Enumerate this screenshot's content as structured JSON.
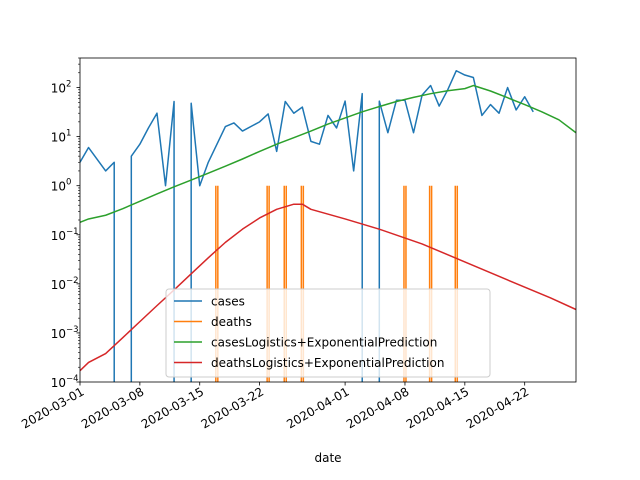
{
  "chart_data": {
    "type": "line",
    "title": "",
    "xlabel": "date",
    "ylabel": "",
    "yscale": "log",
    "ylim": [
      0.0001,
      400
    ],
    "xlim": [
      "2020-03-01",
      "2020-04-28"
    ],
    "grid": false,
    "legend_placement": "lower-center",
    "x_ticks": [
      "2020-03-01",
      "2020-03-08",
      "2020-03-15",
      "2020-03-22",
      "2020-04-01",
      "2020-04-08",
      "2020-04-15",
      "2020-04-22"
    ],
    "y_ticks": [
      {
        "value": 0.0001,
        "base": "10",
        "exp": "−4"
      },
      {
        "value": 0.001,
        "base": "10",
        "exp": "−3"
      },
      {
        "value": 0.01,
        "base": "10",
        "exp": "−2"
      },
      {
        "value": 0.1,
        "base": "10",
        "exp": "−1"
      },
      {
        "value": 1,
        "base": "10",
        "exp": "0"
      },
      {
        "value": 10,
        "base": "10",
        "exp": "1"
      },
      {
        "value": 100,
        "base": "10",
        "exp": "2"
      }
    ],
    "series": [
      {
        "name": "cases",
        "color": "#1f77b4",
        "points": [
          [
            "2020-03-01",
            3
          ],
          [
            "2020-03-02",
            6
          ],
          [
            "2020-03-04",
            2
          ],
          [
            "2020-03-05",
            3
          ],
          [
            "2020-03-05",
            5e-05
          ],
          [
            "2020-03-07",
            5e-05
          ],
          [
            "2020-03-07",
            4
          ],
          [
            "2020-03-08",
            7
          ],
          [
            "2020-03-09",
            15
          ],
          [
            "2020-03-10",
            30
          ],
          [
            "2020-03-11",
            1
          ],
          [
            "2020-03-12",
            52
          ],
          [
            "2020-03-12",
            5e-05
          ],
          [
            "2020-03-14",
            5e-05
          ],
          [
            "2020-03-14",
            48
          ],
          [
            "2020-03-15",
            1
          ],
          [
            "2020-03-16",
            3
          ],
          [
            "2020-03-18",
            16
          ],
          [
            "2020-03-19",
            19
          ],
          [
            "2020-03-20",
            13
          ],
          [
            "2020-03-22",
            20
          ],
          [
            "2020-03-23",
            29
          ],
          [
            "2020-03-24",
            5
          ],
          [
            "2020-03-25",
            52
          ],
          [
            "2020-03-26",
            30
          ],
          [
            "2020-03-27",
            40
          ],
          [
            "2020-03-28",
            8
          ],
          [
            "2020-03-29",
            7
          ],
          [
            "2020-03-30",
            27
          ],
          [
            "2020-03-31",
            15
          ],
          [
            "2020-04-01",
            53
          ],
          [
            "2020-04-02",
            2
          ],
          [
            "2020-04-03",
            75
          ],
          [
            "2020-04-03",
            5e-05
          ],
          [
            "2020-04-05",
            5e-05
          ],
          [
            "2020-04-05",
            53
          ],
          [
            "2020-04-06",
            12
          ],
          [
            "2020-04-07",
            55
          ],
          [
            "2020-04-08",
            55
          ],
          [
            "2020-04-09",
            12
          ],
          [
            "2020-04-10",
            70
          ],
          [
            "2020-04-11",
            110
          ],
          [
            "2020-04-12",
            42
          ],
          [
            "2020-04-13",
            90
          ],
          [
            "2020-04-14",
            220
          ],
          [
            "2020-04-15",
            180
          ],
          [
            "2020-04-16",
            160
          ],
          [
            "2020-04-17",
            27
          ],
          [
            "2020-04-18",
            45
          ],
          [
            "2020-04-19",
            30
          ],
          [
            "2020-04-20",
            100
          ],
          [
            "2020-04-21",
            35
          ],
          [
            "2020-04-22",
            65
          ],
          [
            "2020-04-23",
            32
          ]
        ]
      },
      {
        "name": "deaths",
        "color": "#ff7f0e",
        "spikes": [
          "2020-03-17",
          "2020-03-23",
          "2020-03-25",
          "2020-03-27",
          "2020-04-08",
          "2020-04-11",
          "2020-04-14"
        ],
        "spike_value": 1
      },
      {
        "name": "casesLogistics+ExponentialPrediction",
        "color": "#2ca02c",
        "points": [
          [
            "2020-03-01",
            0.18
          ],
          [
            "2020-03-02",
            0.21
          ],
          [
            "2020-03-04",
            0.25
          ],
          [
            "2020-03-06",
            0.34
          ],
          [
            "2020-03-08",
            0.48
          ],
          [
            "2020-03-10",
            0.68
          ],
          [
            "2020-03-12",
            0.95
          ],
          [
            "2020-03-14",
            1.3
          ],
          [
            "2020-03-16",
            1.8
          ],
          [
            "2020-03-18",
            2.5
          ],
          [
            "2020-03-20",
            3.5
          ],
          [
            "2020-03-22",
            5
          ],
          [
            "2020-03-24",
            7
          ],
          [
            "2020-03-26",
            9.5
          ],
          [
            "2020-03-28",
            13
          ],
          [
            "2020-03-30",
            18
          ],
          [
            "2020-04-01",
            24
          ],
          [
            "2020-04-03",
            32
          ],
          [
            "2020-04-05",
            41
          ],
          [
            "2020-04-07",
            52
          ],
          [
            "2020-04-09",
            63
          ],
          [
            "2020-04-11",
            75
          ],
          [
            "2020-04-13",
            86
          ],
          [
            "2020-04-15",
            95
          ],
          [
            "2020-04-16",
            110
          ],
          [
            "2020-04-18",
            85
          ],
          [
            "2020-04-20",
            62
          ],
          [
            "2020-04-22",
            45
          ],
          [
            "2020-04-24",
            32
          ],
          [
            "2020-04-26",
            22
          ],
          [
            "2020-04-28",
            12
          ]
        ]
      },
      {
        "name": "deathsLogistics+ExponentialPrediction",
        "color": "#d62728",
        "points": [
          [
            "2020-03-01",
            0.00017
          ],
          [
            "2020-03-02",
            0.00025
          ],
          [
            "2020-03-04",
            0.00038
          ],
          [
            "2020-03-06",
            0.0008
          ],
          [
            "2020-03-08",
            0.0017
          ],
          [
            "2020-03-10",
            0.0036
          ],
          [
            "2020-03-12",
            0.0075
          ],
          [
            "2020-03-14",
            0.016
          ],
          [
            "2020-03-16",
            0.034
          ],
          [
            "2020-03-18",
            0.07
          ],
          [
            "2020-03-20",
            0.13
          ],
          [
            "2020-03-22",
            0.22
          ],
          [
            "2020-03-24",
            0.33
          ],
          [
            "2020-03-26",
            0.42
          ],
          [
            "2020-03-27",
            0.42
          ],
          [
            "2020-03-28",
            0.33
          ],
          [
            "2020-04-01",
            0.21
          ],
          [
            "2020-04-05",
            0.13
          ],
          [
            "2020-04-10",
            0.065
          ],
          [
            "2020-04-15",
            0.028
          ],
          [
            "2020-04-20",
            0.012
          ],
          [
            "2020-04-25",
            0.0052
          ],
          [
            "2020-04-28",
            0.003
          ]
        ]
      }
    ]
  }
}
